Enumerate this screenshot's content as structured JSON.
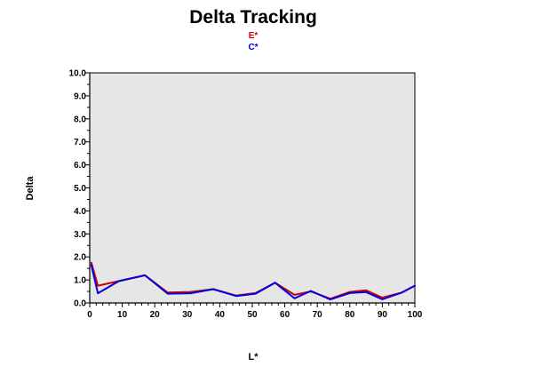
{
  "chart_data": {
    "type": "line",
    "title": "Delta Tracking",
    "xlabel": "L*",
    "ylabel": "Delta",
    "xlim": [
      0,
      100
    ],
    "ylim": [
      0,
      10
    ],
    "x_ticks": [
      "0",
      "10",
      "20",
      "30",
      "40",
      "50",
      "60",
      "70",
      "80",
      "90",
      "100"
    ],
    "y_ticks": [
      "0.0",
      "1.0",
      "2.0",
      "3.0",
      "4.0",
      "5.0",
      "6.0",
      "7.0",
      "8.0",
      "9.0",
      "10.0"
    ],
    "grid": false,
    "legend": "top-center",
    "plot_background": "#e6e6e6",
    "series": [
      {
        "name": "E*",
        "color": "#d00000",
        "x": [
          0.5,
          2.5,
          9,
          17,
          24,
          31,
          38,
          45,
          51,
          57,
          63,
          68,
          74,
          80,
          85,
          90,
          96,
          100
        ],
        "y": [
          1.75,
          0.75,
          0.95,
          1.2,
          0.45,
          0.48,
          0.6,
          0.32,
          0.43,
          0.88,
          0.35,
          0.5,
          0.18,
          0.48,
          0.55,
          0.23,
          0.45,
          0.75
        ]
      },
      {
        "name": "C*",
        "color": "#0000e0",
        "x": [
          0.5,
          2.5,
          9,
          17,
          24,
          31,
          38,
          45,
          51,
          57,
          63,
          68,
          74,
          80,
          85,
          90,
          96,
          100
        ],
        "y": [
          1.65,
          0.42,
          0.95,
          1.2,
          0.4,
          0.42,
          0.6,
          0.3,
          0.4,
          0.88,
          0.2,
          0.52,
          0.15,
          0.43,
          0.47,
          0.16,
          0.45,
          0.75
        ]
      }
    ]
  }
}
